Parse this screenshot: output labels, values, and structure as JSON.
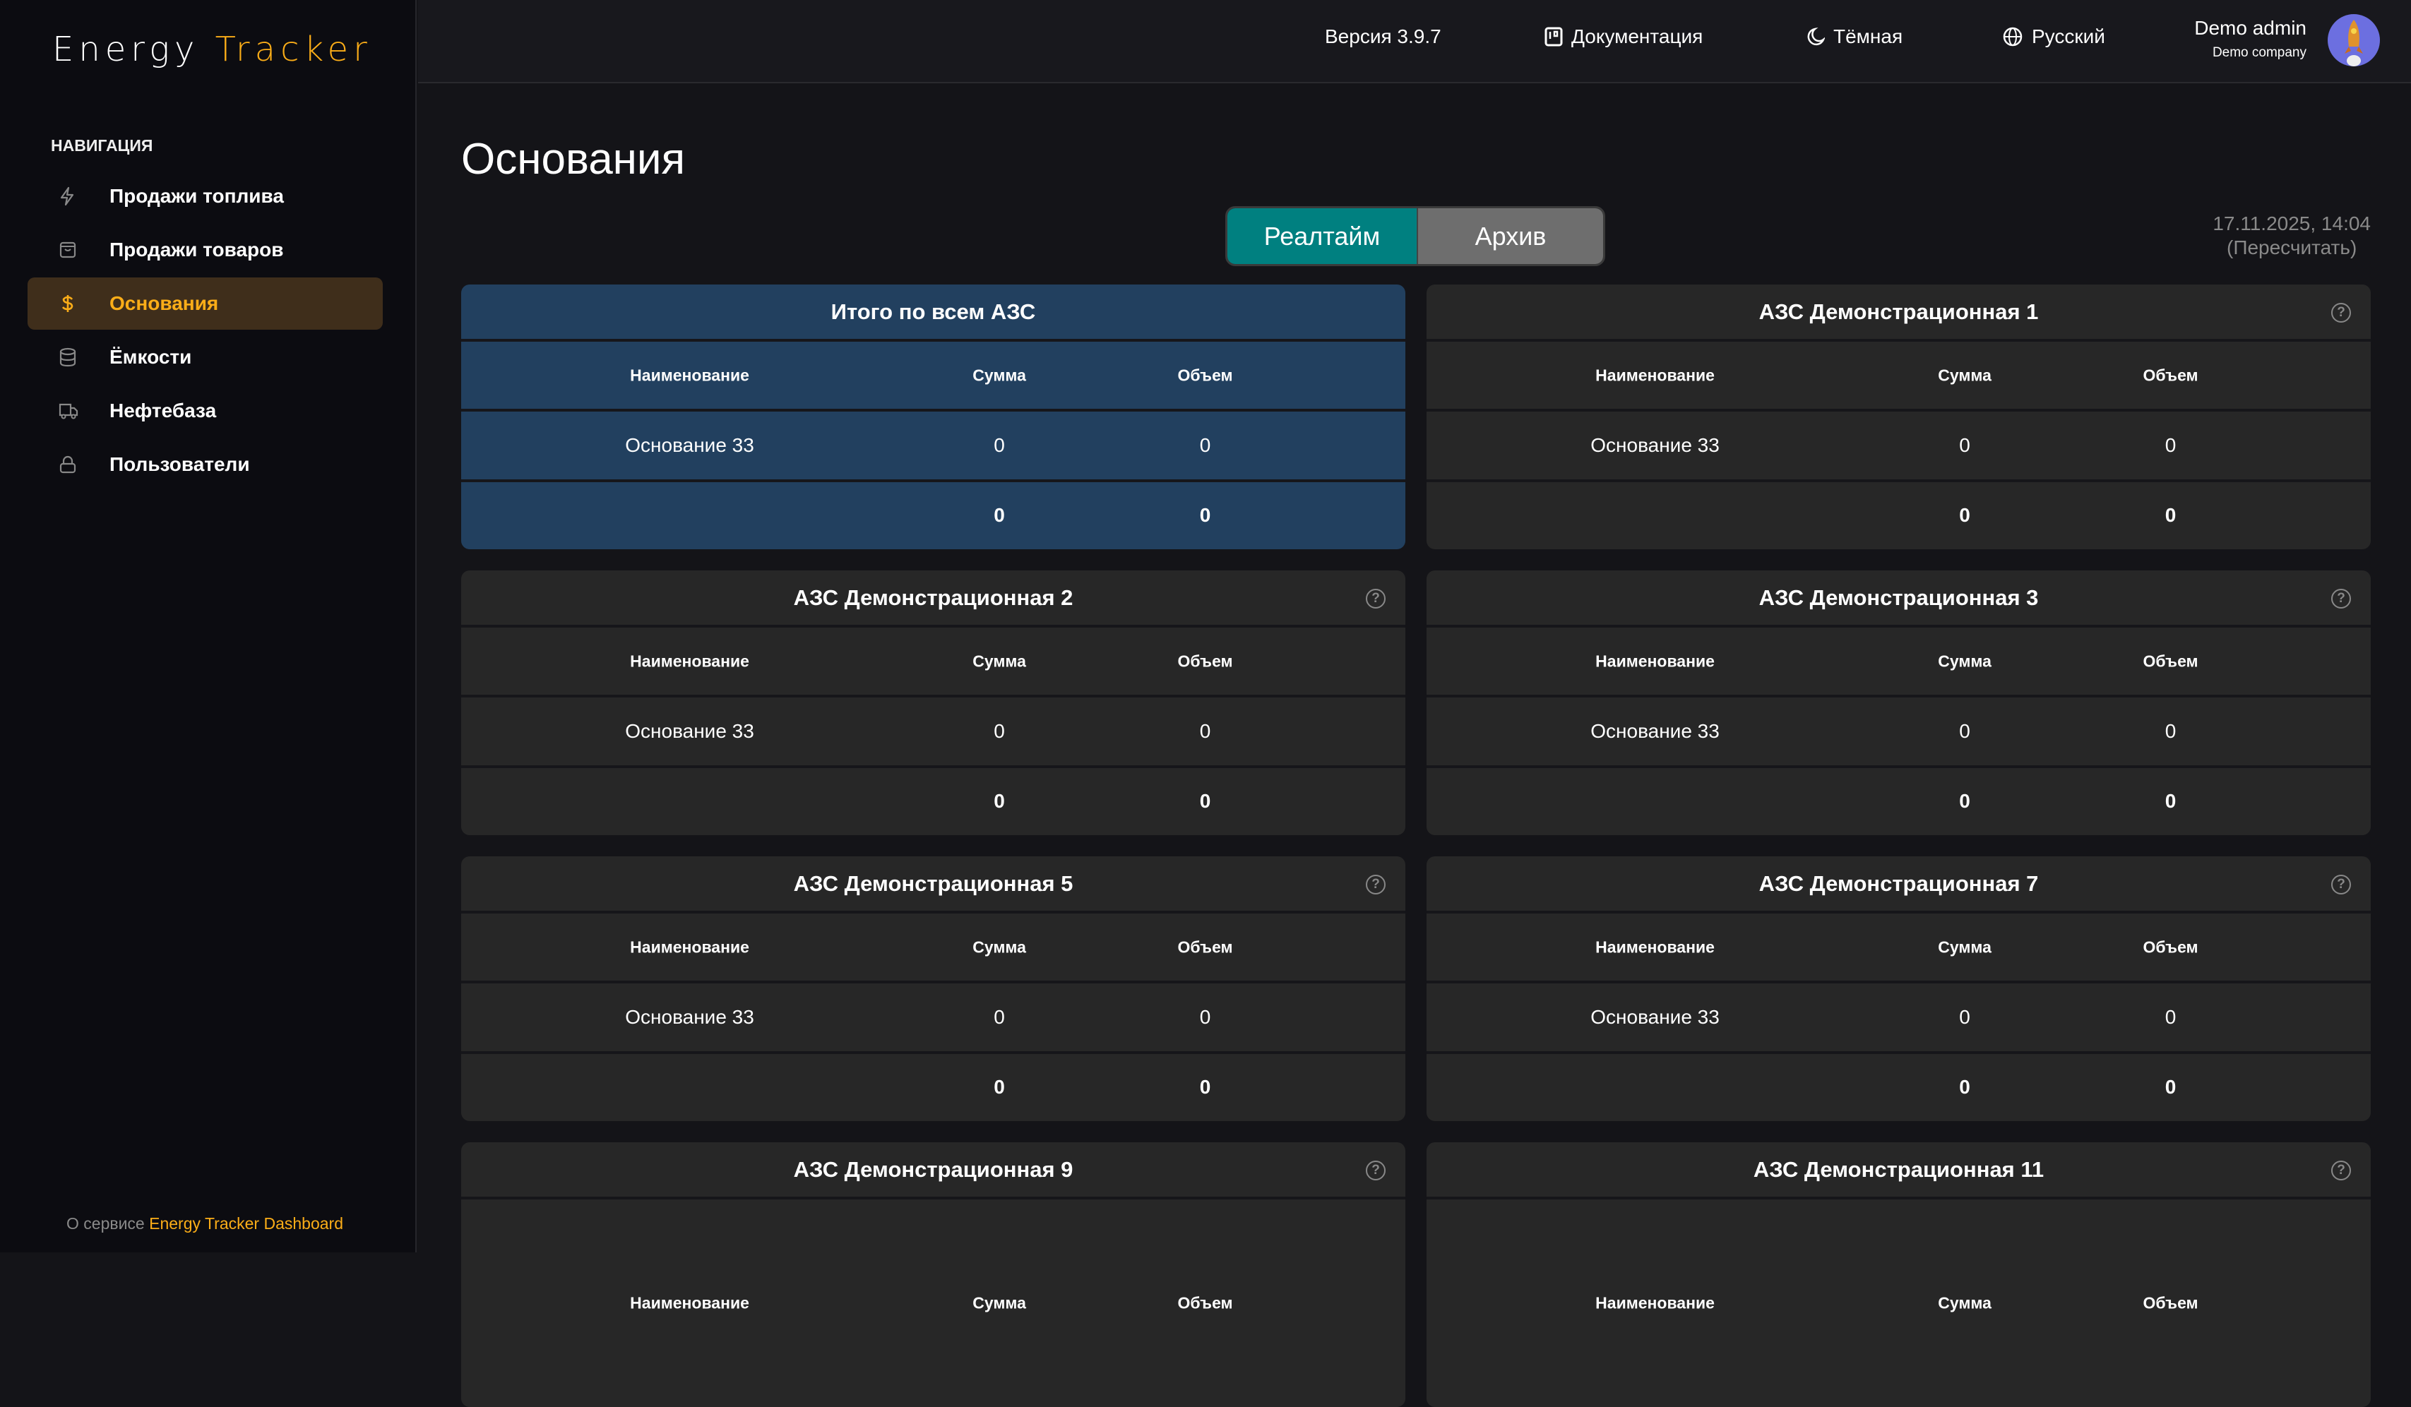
{
  "app": {
    "logo_part1": "Energy",
    "logo_part2": "Tracker"
  },
  "sidebar": {
    "heading": "НАВИГАЦИЯ",
    "items": [
      {
        "label": "Продажи топлива",
        "icon": "lightning-icon",
        "active": false
      },
      {
        "label": "Продажи товаров",
        "icon": "shopping-bag-icon",
        "active": false
      },
      {
        "label": "Основания",
        "icon": "dollar-icon",
        "active": true
      },
      {
        "label": "Ёмкости",
        "icon": "database-icon",
        "active": false
      },
      {
        "label": "Нефтебаза",
        "icon": "truck-icon",
        "active": false
      },
      {
        "label": "Пользователи",
        "icon": "lock-icon",
        "active": false
      }
    ],
    "footer_prefix": "О сервисе",
    "footer_link": "Energy Tracker Dashboard"
  },
  "header": {
    "version": "Версия 3.9.7",
    "docs": "Документация",
    "theme": "Тёмная",
    "language": "Русский",
    "user_name": "Demo admin",
    "company": "Demo company"
  },
  "page": {
    "title": "Основания",
    "tabs": [
      {
        "label": "Реалтайм",
        "active": true
      },
      {
        "label": "Архив",
        "active": false
      }
    ],
    "timestamp": "17.11.2025, 14:04",
    "recalc": "(Пересчитать)"
  },
  "colors": {
    "accent": "#fbad18",
    "teal": "#008080",
    "total_card": "#22405f",
    "card": "#272727"
  },
  "columns": [
    "Наименование",
    "Сумма",
    "Объем"
  ],
  "cards": [
    {
      "title": "Итого по всем АЗС",
      "total": true,
      "rows": [
        [
          "Основание 33",
          "0",
          "0"
        ]
      ],
      "sum": [
        "",
        "0",
        "0"
      ]
    },
    {
      "title": "АЗС Демонстрационная 1",
      "rows": [
        [
          "Основание 33",
          "0",
          "0"
        ]
      ],
      "sum": [
        "",
        "0",
        "0"
      ]
    },
    {
      "title": "АЗС Демонстрационная 2",
      "rows": [
        [
          "Основание 33",
          "0",
          "0"
        ]
      ],
      "sum": [
        "",
        "0",
        "0"
      ]
    },
    {
      "title": "АЗС Демонстрационная 3",
      "rows": [
        [
          "Основание 33",
          "0",
          "0"
        ]
      ],
      "sum": [
        "",
        "0",
        "0"
      ]
    },
    {
      "title": "АЗС Демонстрационная 5",
      "rows": [
        [
          "Основание 33",
          "0",
          "0"
        ]
      ],
      "sum": [
        "",
        "0",
        "0"
      ]
    },
    {
      "title": "АЗС Демонстрационная 7",
      "rows": [
        [
          "Основание 33",
          "0",
          "0"
        ]
      ],
      "sum": [
        "",
        "0",
        "0"
      ]
    },
    {
      "title": "АЗС Демонстрационная 9",
      "rows": [],
      "sum": null
    },
    {
      "title": "АЗС Демонстрационная 11",
      "rows": [],
      "sum": null
    }
  ]
}
